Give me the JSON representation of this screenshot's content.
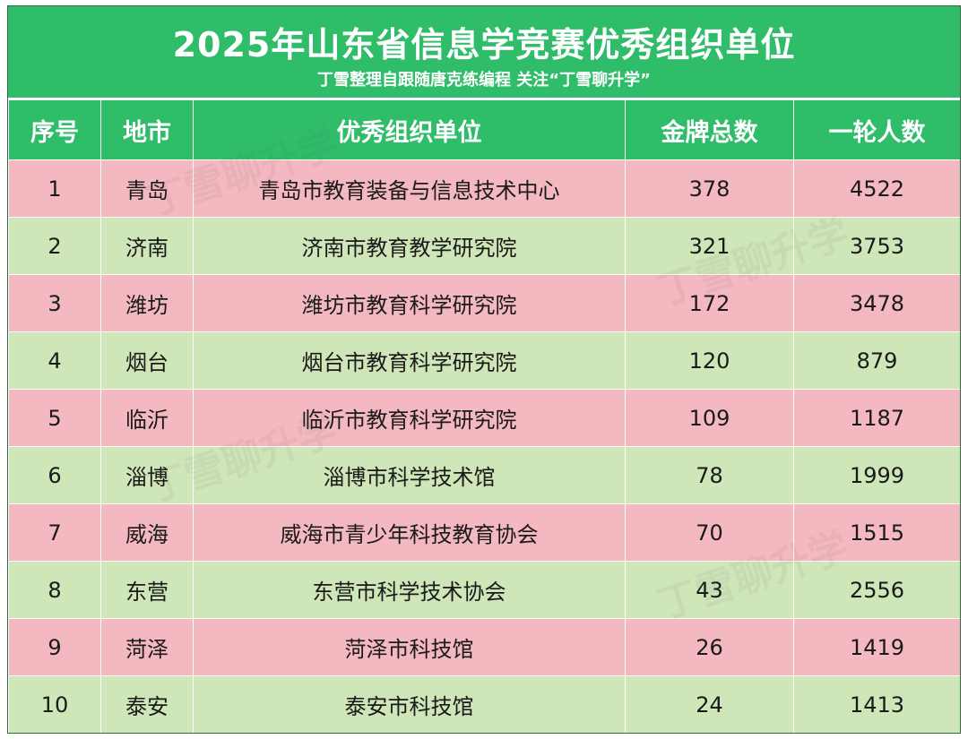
{
  "title": "2025年山东省信息学竞赛优秀组织单位",
  "subtitle": "丁雪整理自跟随唐克练编程 关注“丁雪聊升学”",
  "table": {
    "headers": [
      "序号",
      "地市",
      "优秀组织单位",
      "金牌总数",
      "一轮人数"
    ],
    "rows": [
      [
        "1",
        "青岛",
        "青岛市教育装备与信息技术中心",
        "378",
        "4522"
      ],
      [
        "2",
        "济南",
        "济南市教育教学研究院",
        "321",
        "3753"
      ],
      [
        "3",
        "潍坊",
        "潍坊市教育科学研究院",
        "172",
        "3478"
      ],
      [
        "4",
        "烟台",
        "烟台市教育科学研究院",
        "120",
        "879"
      ],
      [
        "5",
        "临沂",
        "临沂市教育科学研究院",
        "109",
        "1187"
      ],
      [
        "6",
        "淄博",
        "淄博市科学技术馆",
        "78",
        "1999"
      ],
      [
        "7",
        "威海",
        "威海市青少年科技教育协会",
        "70",
        "1515"
      ],
      [
        "8",
        "东营",
        "东营市科学技术协会",
        "43",
        "2556"
      ],
      [
        "9",
        "菏泽",
        "菏泽市科技馆",
        "26",
        "1419"
      ],
      [
        "10",
        "泰安",
        "泰安市科技馆",
        "24",
        "1413"
      ]
    ]
  },
  "watermark": "丁雪聊升学",
  "colors": {
    "header_green": "#2fbd6a",
    "row_pink": "#f4b8c0",
    "row_green": "#cfe6b8"
  }
}
